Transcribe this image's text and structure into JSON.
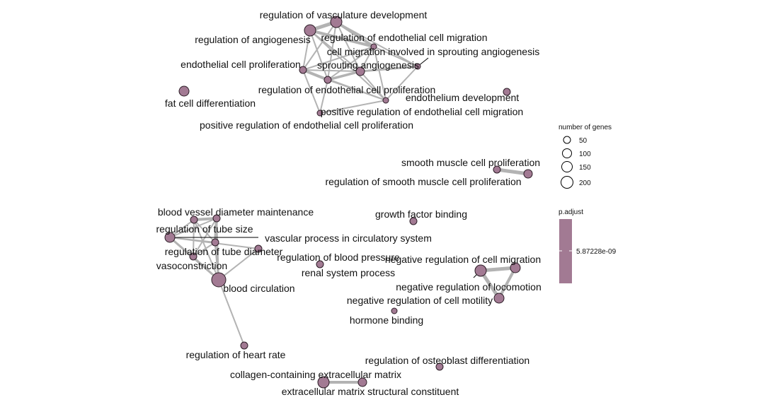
{
  "colors": {
    "node_fill": "#a27a93",
    "node_stroke": "#2b1d26",
    "edge": "#b3b3b3",
    "legend_bar": "#a27a93",
    "background": "#ffffff"
  },
  "terms": [
    {
      "id": "reg_vasc_dev",
      "label": "regulation of vasculature development"
    },
    {
      "id": "reg_angio",
      "label": "regulation of angiogenesis"
    },
    {
      "id": "reg_endo_mig",
      "label": "regulation of endothelial cell migration"
    },
    {
      "id": "cell_mig_sprout",
      "label": "cell migration involved in sprouting angiogenesis"
    },
    {
      "id": "endo_prolif",
      "label": "endothelial cell proliferation"
    },
    {
      "id": "sprout_angio",
      "label": "sprouting angiogenesis"
    },
    {
      "id": "reg_endo_prolif",
      "label": "regulation of endothelial cell proliferation"
    },
    {
      "id": "endothelium_dev",
      "label": "endothelium development"
    },
    {
      "id": "fat_cell_diff",
      "label": "fat cell differentiation"
    },
    {
      "id": "pos_reg_endo_mig",
      "label": "positive regulation of endothelial cell migration"
    },
    {
      "id": "pos_reg_endo_prolif",
      "label": "positive regulation of endothelial cell proliferation"
    },
    {
      "id": "smc_prolif",
      "label": "smooth muscle cell proliferation"
    },
    {
      "id": "reg_smc_prolif",
      "label": "regulation of smooth muscle cell proliferation"
    },
    {
      "id": "bv_diam",
      "label": "blood vessel diameter maintenance"
    },
    {
      "id": "gf_binding",
      "label": "growth factor binding"
    },
    {
      "id": "reg_tube_size",
      "label": "regulation of tube size"
    },
    {
      "id": "vasc_process",
      "label": "vascular process in circulatory system"
    },
    {
      "id": "reg_tube_diam",
      "label": "regulation of tube diameter"
    },
    {
      "id": "reg_bp",
      "label": "regulation of blood pressure"
    },
    {
      "id": "neg_reg_cell_mig",
      "label": "negative regulation of cell migration"
    },
    {
      "id": "vasoconstriction",
      "label": "vasoconstriction"
    },
    {
      "id": "renal",
      "label": "renal system process"
    },
    {
      "id": "blood_circ",
      "label": "blood circulation"
    },
    {
      "id": "neg_reg_locomotion",
      "label": "negative regulation of locomotion"
    },
    {
      "id": "neg_reg_motility",
      "label": "negative regulation of cell motility"
    },
    {
      "id": "hormone_binding",
      "label": "hormone binding"
    },
    {
      "id": "reg_heart_rate",
      "label": "regulation of heart rate"
    },
    {
      "id": "reg_osteo",
      "label": "regulation of osteoblast differentiation"
    },
    {
      "id": "collagen_ecm",
      "label": "collagen-containing extracellular matrix"
    },
    {
      "id": "ecm_struct",
      "label": "extracellular matrix structural constituent"
    }
  ],
  "links": [
    [
      "reg_vasc_dev",
      "reg_angio"
    ],
    [
      "reg_vasc_dev",
      "reg_endo_mig"
    ],
    [
      "reg_vasc_dev",
      "sprout_angio"
    ],
    [
      "reg_vasc_dev",
      "reg_endo_prolif"
    ],
    [
      "reg_vasc_dev",
      "endo_prolif"
    ],
    [
      "reg_vasc_dev",
      "cell_mig_sprout"
    ],
    [
      "reg_angio",
      "reg_endo_mig"
    ],
    [
      "reg_angio",
      "sprout_angio"
    ],
    [
      "reg_angio",
      "endo_prolif"
    ],
    [
      "reg_angio",
      "reg_endo_prolif"
    ],
    [
      "reg_angio",
      "pos_reg_endo_mig"
    ],
    [
      "reg_endo_mig",
      "sprout_angio"
    ],
    [
      "reg_endo_mig",
      "pos_reg_endo_mig"
    ],
    [
      "reg_endo_mig",
      "cell_mig_sprout"
    ],
    [
      "reg_endo_mig",
      "endo_prolif"
    ],
    [
      "reg_endo_mig",
      "reg_endo_prolif"
    ],
    [
      "cell_mig_sprout",
      "sprout_angio"
    ],
    [
      "cell_mig_sprout",
      "pos_reg_endo_mig"
    ],
    [
      "endo_prolif",
      "reg_endo_prolif"
    ],
    [
      "endo_prolif",
      "pos_reg_endo_prolif"
    ],
    [
      "endo_prolif",
      "sprout_angio"
    ],
    [
      "reg_endo_prolif",
      "pos_reg_endo_prolif"
    ],
    [
      "reg_endo_prolif",
      "sprout_angio"
    ],
    [
      "reg_endo_prolif",
      "pos_reg_endo_mig"
    ],
    [
      "sprout_angio",
      "pos_reg_endo_mig"
    ],
    [
      "endo_prolif",
      "pos_reg_endo_mig"
    ],
    [
      "pos_reg_endo_mig",
      "pos_reg_endo_prolif"
    ],
    [
      "smc_prolif",
      "reg_smc_prolif"
    ],
    [
      "bv_diam",
      "reg_tube_size"
    ],
    [
      "bv_diam",
      "reg_tube_diam"
    ],
    [
      "bv_diam",
      "vasc_process"
    ],
    [
      "bv_diam",
      "blood_circ"
    ],
    [
      "bv_diam",
      "vasoconstriction"
    ],
    [
      "reg_tube_size",
      "reg_tube_diam"
    ],
    [
      "reg_tube_size",
      "vasc_process"
    ],
    [
      "reg_tube_size",
      "blood_circ"
    ],
    [
      "reg_tube_size",
      "vasoconstriction"
    ],
    [
      "reg_tube_diam",
      "vasc_process"
    ],
    [
      "reg_tube_diam",
      "blood_circ"
    ],
    [
      "reg_tube_diam",
      "vasoconstriction"
    ],
    [
      "vasc_process",
      "blood_circ"
    ],
    [
      "vasc_process",
      "reg_bp"
    ],
    [
      "blood_circ",
      "reg_bp"
    ],
    [
      "blood_circ",
      "reg_heart_rate"
    ],
    [
      "vasoconstriction",
      "blood_circ"
    ],
    [
      "neg_reg_cell_mig",
      "neg_reg_locomotion"
    ],
    [
      "neg_reg_cell_mig",
      "neg_reg_motility"
    ],
    [
      "neg_reg_locomotion",
      "neg_reg_motility"
    ],
    [
      "collagen_ecm",
      "ecm_struct"
    ]
  ],
  "legend": {
    "size_title": "number of genes",
    "size_values": [
      50,
      100,
      150,
      200
    ],
    "color_title": "p.adjust",
    "color_value": "5.87228e-09"
  }
}
